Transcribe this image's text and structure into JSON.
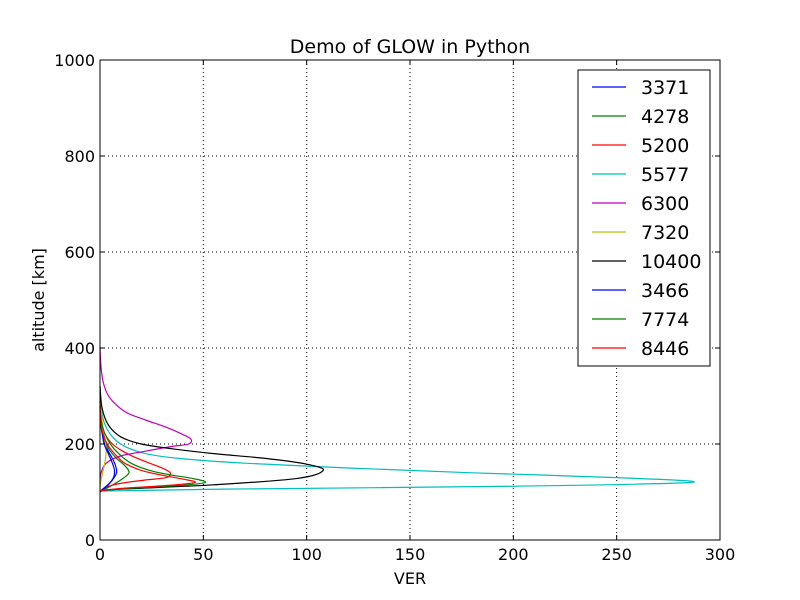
{
  "chart_data": {
    "type": "line",
    "title": "Demo of GLOW in Python",
    "xlabel": "VER",
    "ylabel": "altitude [km]",
    "xlim": [
      0,
      300
    ],
    "ylim": [
      0,
      1000
    ],
    "xticks": [
      "0",
      "50",
      "100",
      "150",
      "200",
      "250",
      "300"
    ],
    "yticks": [
      "0",
      "200",
      "400",
      "600",
      "800",
      "1000"
    ],
    "grid": true,
    "legend_position": "top-right",
    "series": [
      {
        "name": "3371",
        "color": "#0000ff",
        "x": [
          0,
          1,
          3,
          6,
          8,
          7.5,
          6,
          4,
          2.5,
          1.5,
          0.8,
          0.3,
          0
        ],
        "y": [
          100,
          105,
          112,
          125,
          140,
          155,
          170,
          185,
          200,
          215,
          230,
          250,
          280
        ]
      },
      {
        "name": "4278",
        "color": "#008000",
        "x": [
          0,
          2,
          5,
          10,
          14,
          12,
          8,
          5,
          3,
          1.5,
          0.7,
          0.2,
          0
        ],
        "y": [
          100,
          105,
          112,
          125,
          140,
          155,
          170,
          185,
          200,
          215,
          230,
          250,
          280
        ]
      },
      {
        "name": "5200",
        "color": "#ff0000",
        "x": [
          0,
          3,
          10,
          22,
          32,
          34,
          30,
          24,
          17,
          11,
          6,
          2.5,
          0.8,
          0
        ],
        "y": [
          100,
          110,
          118,
          125,
          130,
          140,
          150,
          160,
          172,
          185,
          200,
          220,
          245,
          280
        ]
      },
      {
        "name": "5577",
        "color": "#00bfbf",
        "x": [
          0,
          60,
          200,
          286,
          250,
          180,
          120,
          70,
          38,
          22,
          12,
          6,
          2,
          0.5,
          0
        ],
        "y": [
          102,
          106,
          112,
          120,
          130,
          140,
          150,
          160,
          170,
          180,
          195,
          215,
          245,
          280,
          320
        ]
      },
      {
        "name": "6300",
        "color": "#bf00bf",
        "x": [
          0,
          0.5,
          3,
          10,
          22,
          35,
          43,
          44,
          40,
          32,
          22,
          13,
          7,
          3.5,
          1.5,
          0.5,
          0
        ],
        "y": [
          120,
          140,
          160,
          175,
          185,
          195,
          200,
          210,
          220,
          235,
          250,
          265,
          285,
          305,
          330,
          360,
          400
        ]
      },
      {
        "name": "7320",
        "color": "#bfbf00",
        "x": [
          0,
          0.5,
          1.5,
          2.5,
          3,
          2.5,
          1.8,
          1,
          0.5,
          0
        ],
        "y": [
          110,
          125,
          145,
          165,
          185,
          205,
          225,
          250,
          280,
          320
        ]
      },
      {
        "name": "10400",
        "color": "#000000",
        "x": [
          0,
          15,
          55,
          95,
          108,
          100,
          80,
          55,
          35,
          20,
          10,
          4,
          1,
          0
        ],
        "y": [
          103,
          107,
          115,
          128,
          145,
          158,
          170,
          180,
          190,
          200,
          215,
          240,
          275,
          320
        ]
      },
      {
        "name": "3466",
        "color": "#0000ff",
        "x": [
          0,
          1.5,
          4,
          6.5,
          7,
          6,
          4,
          2,
          0.8,
          0
        ],
        "y": [
          100,
          106,
          115,
          130,
          145,
          160,
          180,
          200,
          230,
          270
        ]
      },
      {
        "name": "7774",
        "color": "#008000",
        "x": [
          0,
          15,
          40,
          51,
          45,
          35,
          24,
          15,
          9,
          5,
          2,
          0.5,
          0
        ],
        "y": [
          103,
          108,
          114,
          120,
          128,
          135,
          145,
          160,
          180,
          200,
          225,
          250,
          290
        ]
      },
      {
        "name": "8446",
        "color": "#ff0000",
        "x": [
          0,
          12,
          34,
          46,
          40,
          30,
          20,
          12,
          7,
          3.5,
          1.2,
          0.3,
          0
        ],
        "y": [
          103,
          108,
          114,
          120,
          127,
          135,
          145,
          160,
          180,
          200,
          225,
          250,
          290
        ]
      }
    ]
  }
}
